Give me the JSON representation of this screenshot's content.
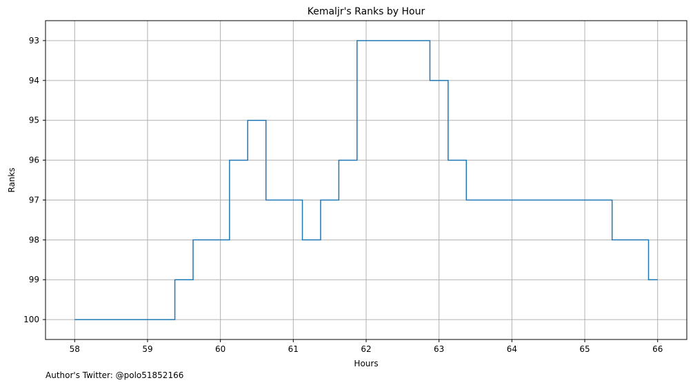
{
  "chart_data": {
    "type": "line",
    "step": "post",
    "title": "Kemaljr's Ranks by Hour",
    "xlabel": "Hours",
    "ylabel": "Ranks",
    "xlim": [
      57.6,
      66.4
    ],
    "ylim": [
      100.5,
      92.5
    ],
    "y_inverted": true,
    "xticks": [
      58,
      59,
      60,
      61,
      62,
      63,
      64,
      65,
      66
    ],
    "yticks": [
      93,
      94,
      95,
      96,
      97,
      98,
      99,
      100
    ],
    "grid": true,
    "series": [
      {
        "color": "#1f77b4",
        "x": [
          58,
          59.375,
          59.625,
          60.125,
          60.375,
          60.625,
          61.125,
          61.375,
          61.625,
          61.875,
          62.875,
          63.125,
          63.375,
          65.375,
          65.875,
          66
        ],
        "y": [
          100,
          99,
          98,
          96,
          95,
          97,
          98,
          97,
          96,
          93,
          94,
          96,
          97,
          98,
          99,
          99
        ]
      }
    ]
  },
  "footnote": "Author's Twitter: @polo51852166"
}
